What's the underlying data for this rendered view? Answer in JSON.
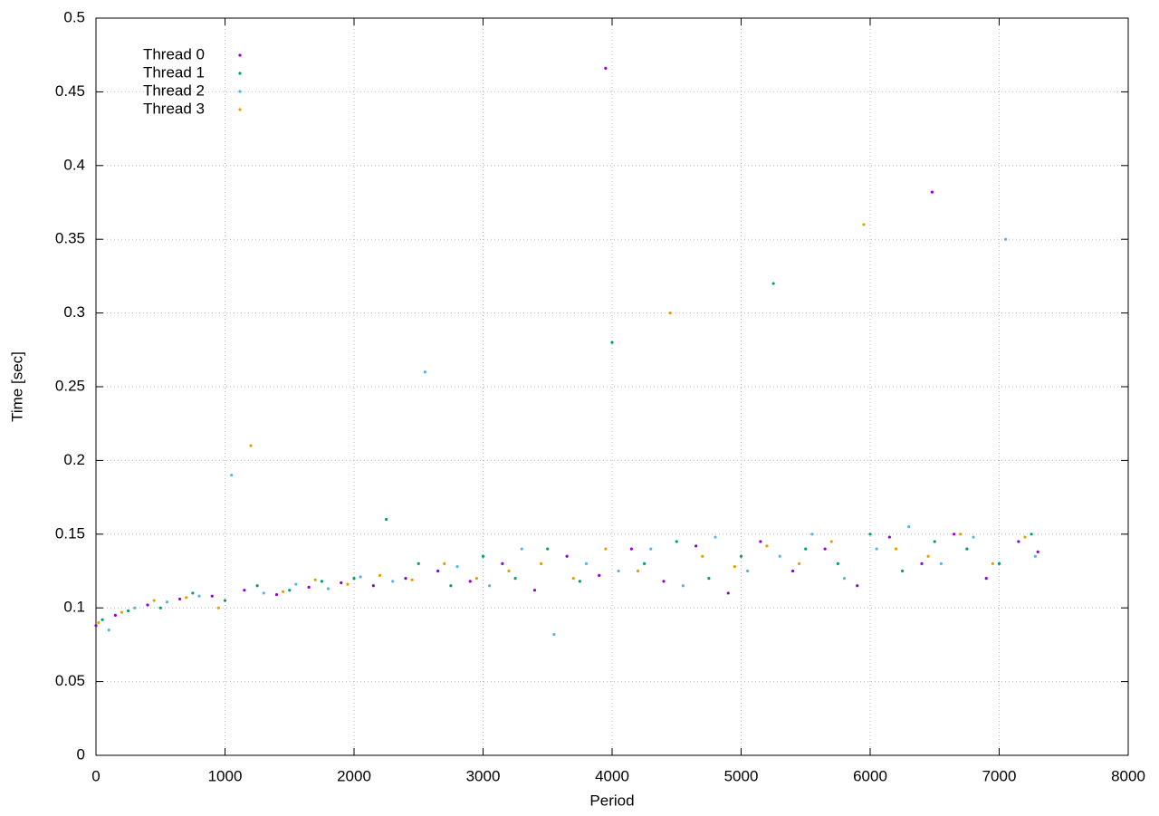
{
  "chart_data": {
    "type": "scatter",
    "x_label": "Period",
    "y_label": "Time [sec]",
    "xlim": [
      0,
      8000
    ],
    "ylim": [
      0,
      0.5
    ],
    "xticks": [
      0,
      1000,
      2000,
      3000,
      4000,
      5000,
      6000,
      7000,
      8000
    ],
    "yticks": [
      0,
      0.05,
      0.1,
      0.15,
      0.2,
      0.25,
      0.3,
      0.35,
      0.4,
      0.45,
      0.5
    ],
    "grid": true,
    "legend": "upper-left",
    "series": [
      {
        "name": "Thread 0",
        "color": "#9400d3",
        "x": [
          0,
          150,
          400,
          650,
          900,
          1150,
          1400,
          1650,
          1900,
          2150,
          2400,
          2650,
          2900,
          3150,
          3400,
          3650,
          3900,
          3950,
          4150,
          4400,
          4650,
          4900,
          5150,
          5400,
          5650,
          5900,
          6150,
          6400,
          6480,
          6650,
          6900,
          7150,
          7300
        ],
        "values": [
          0.088,
          0.095,
          0.102,
          0.106,
          0.108,
          0.112,
          0.109,
          0.114,
          0.117,
          0.115,
          0.12,
          0.125,
          0.118,
          0.13,
          0.112,
          0.135,
          0.122,
          0.466,
          0.14,
          0.118,
          0.142,
          0.11,
          0.145,
          0.125,
          0.14,
          0.115,
          0.148,
          0.13,
          0.382,
          0.15,
          0.12,
          0.145,
          0.138
        ]
      },
      {
        "name": "Thread 1",
        "color": "#009e73",
        "x": [
          50,
          250,
          500,
          750,
          1000,
          1250,
          1500,
          1750,
          2000,
          2250,
          2500,
          2750,
          3000,
          3250,
          3500,
          3750,
          4000,
          4250,
          4500,
          4750,
          5000,
          5250,
          5500,
          5750,
          6000,
          6250,
          6500,
          6750,
          7000,
          7250
        ],
        "values": [
          0.092,
          0.098,
          0.1,
          0.11,
          0.105,
          0.115,
          0.112,
          0.118,
          0.12,
          0.16,
          0.13,
          0.115,
          0.135,
          0.12,
          0.14,
          0.118,
          0.28,
          0.13,
          0.145,
          0.12,
          0.135,
          0.32,
          0.14,
          0.13,
          0.15,
          0.125,
          0.145,
          0.14,
          0.13,
          0.15
        ]
      },
      {
        "name": "Thread 2",
        "color": "#56b4e9",
        "x": [
          100,
          300,
          550,
          800,
          1050,
          1300,
          1550,
          1800,
          2050,
          2300,
          2550,
          2800,
          3050,
          3300,
          3550,
          3800,
          4050,
          4300,
          4550,
          4800,
          5050,
          5300,
          5550,
          5800,
          6050,
          6300,
          6550,
          6800,
          7050,
          7280
        ],
        "values": [
          0.085,
          0.1,
          0.104,
          0.108,
          0.19,
          0.11,
          0.116,
          0.113,
          0.121,
          0.118,
          0.26,
          0.128,
          0.115,
          0.14,
          0.082,
          0.13,
          0.125,
          0.14,
          0.115,
          0.148,
          0.125,
          0.135,
          0.15,
          0.12,
          0.14,
          0.155,
          0.13,
          0.148,
          0.35,
          0.135
        ]
      },
      {
        "name": "Thread 3",
        "color": "#e69f00",
        "x": [
          20,
          200,
          450,
          700,
          950,
          1200,
          1450,
          1700,
          1950,
          2200,
          2450,
          2700,
          2950,
          3200,
          3450,
          3700,
          3950,
          4200,
          4450,
          4700,
          4950,
          5200,
          5450,
          5700,
          5950,
          6200,
          6450,
          6700,
          6950,
          7200
        ],
        "values": [
          0.09,
          0.097,
          0.105,
          0.107,
          0.1,
          0.21,
          0.111,
          0.119,
          0.116,
          0.122,
          0.119,
          0.13,
          0.12,
          0.125,
          0.13,
          0.12,
          0.14,
          0.125,
          0.3,
          0.135,
          0.128,
          0.142,
          0.13,
          0.145,
          0.36,
          0.14,
          0.135,
          0.15,
          0.13,
          0.148
        ]
      }
    ]
  }
}
